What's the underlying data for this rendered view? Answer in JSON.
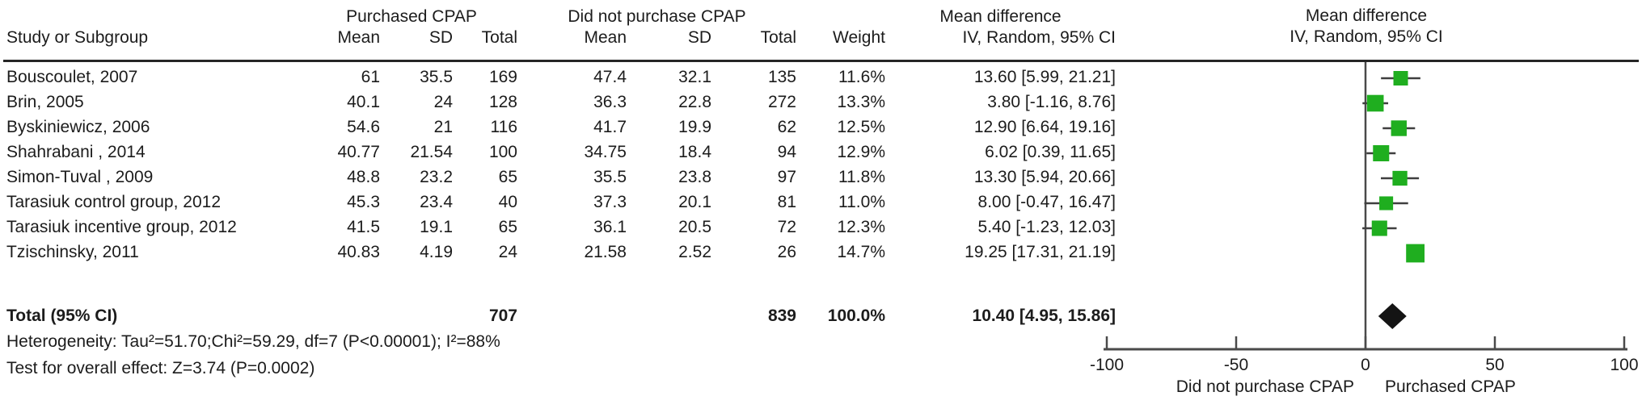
{
  "figure": {
    "columns": {
      "study": "Study or Subgroup",
      "group1": "Purchased CPAP",
      "group2": "Did not purchase CPAP",
      "mean": "Mean",
      "sd": "SD",
      "total": "Total",
      "weight": "Weight",
      "md_line1": "Mean difference",
      "md_line2": "IV, Random, 95% CI"
    },
    "total_row": {
      "label": "Total (95% CI)",
      "total1": "707",
      "total2": "839",
      "weight": "100.0%",
      "ci_text": "10.40 [4.95, 15.86]"
    },
    "footnotes": {
      "heterogeneity": "Heterogeneity: Tau²=51.70;Chi²=59.29, df=7 (P<0.00001); I²=88%",
      "overall_effect": "Test for overall effect: Z=3.74 (P=0.0002)"
    }
  },
  "chart_data": {
    "type": "forest",
    "effect_measure": "Mean difference, IV, Random, 95% CI",
    "xlim": [
      -100,
      100
    ],
    "x_ticks": [
      -100,
      -50,
      0,
      50,
      100
    ],
    "axis_label_left": "Did not purchase CPAP",
    "axis_label_right": "Purchased CPAP",
    "marker_color": "#1fae1f",
    "diamond_color": "#141414",
    "line_color": "#3f3f3f",
    "axis_color": "#4a4a4a",
    "rule_color": "#262626",
    "studies": [
      {
        "name": "Bouscoulet, 2007",
        "mean1": "61",
        "sd1": "35.5",
        "total1": "169",
        "mean2": "47.4",
        "sd2": "32.1",
        "total2": "135",
        "weight": "11.6%",
        "weight_pct": 11.6,
        "ci_text": "13.60 [5.99, 21.21]",
        "md": 13.6,
        "ci_low": 5.99,
        "ci_high": 21.21
      },
      {
        "name": "Brin, 2005",
        "mean1": "40.1",
        "sd1": "24",
        "total1": "128",
        "mean2": "36.3",
        "sd2": "22.8",
        "total2": "272",
        "weight": "13.3%",
        "weight_pct": 13.3,
        "ci_text": "3.80 [-1.16, 8.76]",
        "md": 3.8,
        "ci_low": -1.16,
        "ci_high": 8.76
      },
      {
        "name": "Byskiniewicz, 2006",
        "mean1": "54.6",
        "sd1": "21",
        "total1": "116",
        "mean2": "41.7",
        "sd2": "19.9",
        "total2": "62",
        "weight": "12.5%",
        "weight_pct": 12.5,
        "ci_text": "12.90 [6.64, 19.16]",
        "md": 12.9,
        "ci_low": 6.64,
        "ci_high": 19.16
      },
      {
        "name": "Shahrabani , 2014",
        "mean1": "40.77",
        "sd1": "21.54",
        "total1": "100",
        "mean2": "34.75",
        "sd2": "18.4",
        "total2": "94",
        "weight": "12.9%",
        "weight_pct": 12.9,
        "ci_text": "6.02 [0.39, 11.65]",
        "md": 6.02,
        "ci_low": 0.39,
        "ci_high": 11.65
      },
      {
        "name": "Simon-Tuval , 2009",
        "mean1": "48.8",
        "sd1": "23.2",
        "total1": "65",
        "mean2": "35.5",
        "sd2": "23.8",
        "total2": "97",
        "weight": "11.8%",
        "weight_pct": 11.8,
        "ci_text": "13.30 [5.94, 20.66]",
        "md": 13.3,
        "ci_low": 5.94,
        "ci_high": 20.66
      },
      {
        "name": "Tarasiuk control group, 2012",
        "mean1": "45.3",
        "sd1": "23.4",
        "total1": "40",
        "mean2": "37.3",
        "sd2": "20.1",
        "total2": "81",
        "weight": "11.0%",
        "weight_pct": 11.0,
        "ci_text": "8.00 [-0.47, 16.47]",
        "md": 8.0,
        "ci_low": -0.47,
        "ci_high": 16.47
      },
      {
        "name": "Tarasiuk incentive group, 2012",
        "mean1": "41.5",
        "sd1": "19.1",
        "total1": "65",
        "mean2": "36.1",
        "sd2": "20.5",
        "total2": "72",
        "weight": "12.3%",
        "weight_pct": 12.3,
        "ci_text": "5.40 [-1.23, 12.03]",
        "md": 5.4,
        "ci_low": -1.23,
        "ci_high": 12.03
      },
      {
        "name": "Tzischinsky, 2011",
        "mean1": "40.83",
        "sd1": "4.19",
        "total1": "24",
        "mean2": "21.58",
        "sd2": "2.52",
        "total2": "26",
        "weight": "14.7%",
        "weight_pct": 14.7,
        "ci_text": "19.25 [17.31, 21.19]",
        "md": 19.25,
        "ci_low": 17.31,
        "ci_high": 21.19
      }
    ],
    "total": {
      "md": 10.4,
      "ci_low": 4.95,
      "ci_high": 15.86
    }
  }
}
